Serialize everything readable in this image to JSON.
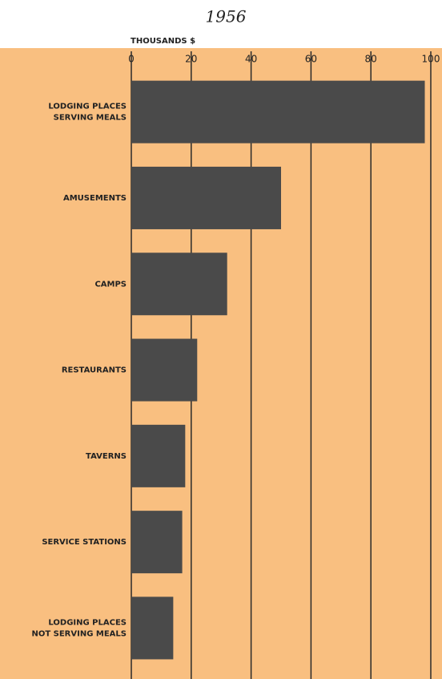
{
  "chart_data": {
    "type": "bar",
    "orientation": "horizontal",
    "title": "1956",
    "xlabel": "THOUSANDS $",
    "categories": [
      "LODGING PLACES\nSERVING MEALS",
      "AMUSEMENTS",
      "CAMPS",
      "RESTAURANTS",
      "TAVERNS",
      "SERVICE STATIONS",
      "LODGING PLACES\nNOT SERVING MEALS"
    ],
    "values": [
      98,
      50,
      32,
      22,
      18,
      17,
      14
    ],
    "color": "#4a4a4a",
    "background": "#f9bf80",
    "xlim": [
      0,
      100
    ],
    "xticks": [
      0,
      20,
      40,
      60,
      80,
      100
    ],
    "grid": true
  }
}
